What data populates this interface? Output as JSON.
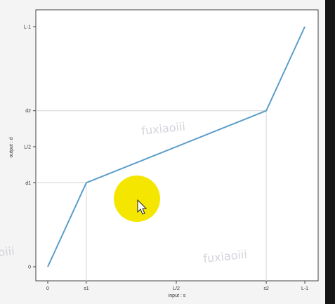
{
  "chart_data": {
    "type": "line",
    "title": "",
    "xlabel": "input : s",
    "ylabel": "output : d",
    "xlim": [
      0,
      100
    ],
    "ylim": [
      0,
      100
    ],
    "x_ticks": [
      {
        "label": "0",
        "value": 0
      },
      {
        "label": "s1",
        "value": 15
      },
      {
        "label": "L/2",
        "value": 50
      },
      {
        "label": "s2",
        "value": 85
      },
      {
        "label": "L-1",
        "value": 100
      }
    ],
    "y_ticks": [
      {
        "label": "0",
        "value": 0
      },
      {
        "label": "d1",
        "value": 35
      },
      {
        "label": "L/2",
        "value": 50
      },
      {
        "label": "d2",
        "value": 65
      },
      {
        "label": "L-1",
        "value": 100
      }
    ],
    "series": [
      {
        "name": "",
        "x": [
          0,
          15,
          85,
          100
        ],
        "y": [
          0,
          35,
          65,
          100
        ],
        "color": "#5b9dc9"
      }
    ],
    "guide_lines": [
      {
        "x": 15,
        "y": 35
      },
      {
        "x": 85,
        "y": 65
      }
    ],
    "grid": false,
    "legend": "none"
  },
  "watermarks": [
    "fuxiaoiii",
    "fuxiaoiii",
    "oiii"
  ],
  "cursor": {
    "highlight_color": "#f5e600"
  }
}
